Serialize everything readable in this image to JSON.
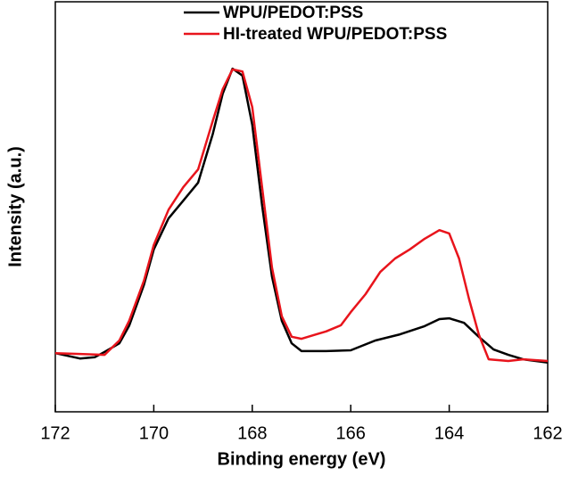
{
  "chart_data": {
    "type": "line",
    "xlabel": "Binding energy (eV)",
    "ylabel": "Intensity (a.u.)",
    "xlim": [
      172,
      162
    ],
    "xticks": [
      172,
      170,
      168,
      166,
      164,
      162
    ],
    "ylim": [
      0,
      100
    ],
    "legend": "upper center",
    "series": [
      {
        "name": "WPU/PEDOT:PSS",
        "color": "#000000",
        "x": [
          172,
          171.5,
          171.2,
          171,
          170.7,
          170.5,
          170.2,
          170,
          169.7,
          169.4,
          169.1,
          168.8,
          168.6,
          168.4,
          168.2,
          168,
          167.8,
          167.6,
          167.4,
          167.2,
          167,
          166.5,
          166,
          165.5,
          165,
          164.5,
          164.2,
          164,
          163.7,
          163.4,
          163.1,
          162.8,
          162.5,
          162
        ],
        "values": [
          14.3,
          13.0,
          13.3,
          14.6,
          16.7,
          21,
          31,
          39.6,
          47.2,
          51.5,
          55.9,
          67.8,
          77.6,
          83.7,
          82,
          70,
          50.4,
          33,
          22.2,
          16.7,
          14.8,
          14.8,
          15,
          17.4,
          18.9,
          20.9,
          22.6,
          22.8,
          21.7,
          18.3,
          15.2,
          13.9,
          12.8,
          12
        ]
      },
      {
        "name": "HI-treated WPU/PEDOT:PSS",
        "color": "#e8141c",
        "x": [
          172,
          171.5,
          171,
          170.7,
          170.5,
          170.2,
          170,
          169.7,
          169.4,
          169.1,
          168.8,
          168.6,
          168.4,
          168.2,
          168,
          167.8,
          167.6,
          167.4,
          167.2,
          167,
          166.7,
          166.5,
          166.2,
          166,
          165.7,
          165.4,
          165.1,
          164.8,
          164.5,
          164.2,
          164,
          163.8,
          163.6,
          163.4,
          163.2,
          162.8,
          162.5,
          162
        ],
        "values": [
          14.3,
          14.1,
          13.9,
          17.4,
          22.2,
          32,
          40.7,
          49.3,
          54.8,
          59.1,
          71,
          78.7,
          83.5,
          83,
          74.3,
          54.8,
          35.2,
          23.3,
          18.3,
          17.8,
          18.9,
          19.6,
          21.1,
          24.3,
          28.7,
          34.1,
          37.4,
          39.6,
          42.2,
          44.3,
          43.5,
          37.4,
          27.6,
          18.9,
          12.8,
          12.4,
          12.8,
          12.4
        ]
      }
    ]
  }
}
